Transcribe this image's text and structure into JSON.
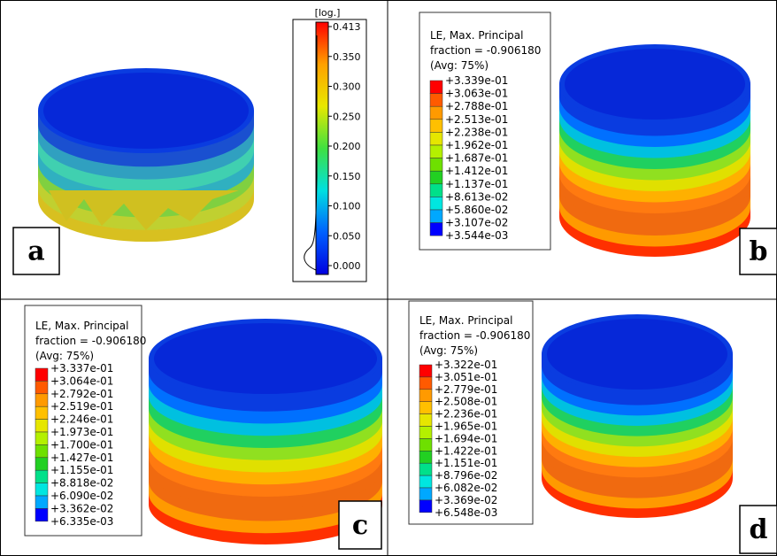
{
  "panels": [
    {
      "label": "a",
      "scale": {
        "title": "[log.]",
        "ticks": [
          "0.413",
          "0.350",
          "0.300",
          "0.250",
          "0.200",
          "0.150",
          "0.100",
          "0.050",
          "0.000"
        ]
      }
    },
    {
      "label": "b",
      "legend": {
        "title": [
          "LE, Max. Principal",
          "fraction = -0.906180",
          "(Avg: 75%)"
        ],
        "values": [
          "+3.339e-01",
          "+3.063e-01",
          "+2.788e-01",
          "+2.513e-01",
          "+2.238e-01",
          "+1.962e-01",
          "+1.687e-01",
          "+1.412e-01",
          "+1.137e-01",
          "+8.613e-02",
          "+5.860e-02",
          "+3.107e-02",
          "+3.544e-03"
        ]
      }
    },
    {
      "label": "c",
      "legend": {
        "title": [
          "LE, Max. Principal",
          "fraction = -0.906180",
          "(Avg: 75%)"
        ],
        "values": [
          "+3.337e-01",
          "+3.064e-01",
          "+2.792e-01",
          "+2.519e-01",
          "+2.246e-01",
          "+1.973e-01",
          "+1.700e-01",
          "+1.427e-01",
          "+1.155e-01",
          "+8.818e-02",
          "+6.090e-02",
          "+3.362e-02",
          "+6.335e-03"
        ]
      }
    },
    {
      "label": "d",
      "legend": {
        "title": [
          "LE, Max. Principal",
          "fraction = -0.906180",
          "(Avg: 75%)"
        ],
        "values": [
          "+3.322e-01",
          "+3.051e-01",
          "+2.779e-01",
          "+2.508e-01",
          "+2.236e-01",
          "+1.965e-01",
          "+1.694e-01",
          "+1.422e-01",
          "+1.151e-01",
          "+8.796e-02",
          "+6.082e-02",
          "+3.369e-02",
          "+6.548e-03"
        ]
      }
    }
  ]
}
